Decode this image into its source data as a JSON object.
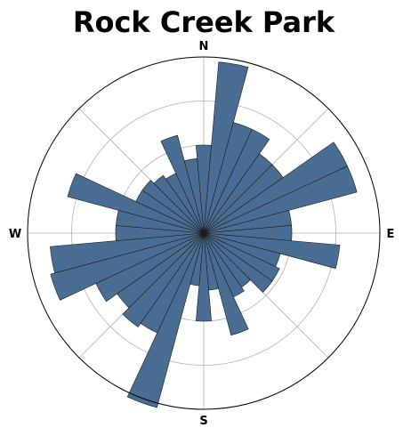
{
  "chart_data": {
    "type": "polar-bar",
    "title": "Rock Creek Park",
    "direction_labels": {
      "north": "N",
      "east": "E",
      "south": "S",
      "west": "W"
    },
    "sectors": 36,
    "sector_width_deg": 10,
    "direction_clockwise": true,
    "zero_at": "north",
    "rmax": 4,
    "rgrid": [
      1,
      2,
      3
    ],
    "thetagrid_deg": [
      0,
      45,
      90,
      135,
      180,
      225,
      270,
      315
    ],
    "grid": true,
    "radial_tick_labels_shown": false,
    "angles_deg": [
      0,
      10,
      20,
      30,
      40,
      50,
      60,
      70,
      80,
      90,
      100,
      110,
      120,
      130,
      140,
      150,
      160,
      170,
      180,
      190,
      200,
      210,
      220,
      230,
      240,
      250,
      260,
      270,
      280,
      290,
      300,
      310,
      320,
      330,
      340,
      350
    ],
    "values": [
      2.0,
      3.9,
      2.6,
      2.6,
      2.2,
      2.2,
      3.6,
      3.6,
      2.0,
      2.0,
      3.1,
      1.8,
      1.9,
      1.9,
      1.5,
      1.6,
      2.4,
      1.3,
      2.0,
      1.2,
      4.1,
      2.5,
      2.6,
      2.4,
      2.7,
      3.6,
      3.5,
      2.0,
      2.0,
      3.2,
      1.7,
      1.7,
      1.6,
      1.5,
      2.3,
      1.7
    ],
    "colors": {
      "bar": "#4a6d94",
      "bar_edge": "#1c1c1c",
      "grid": "#b0b0b0",
      "outline": "#000000"
    }
  }
}
